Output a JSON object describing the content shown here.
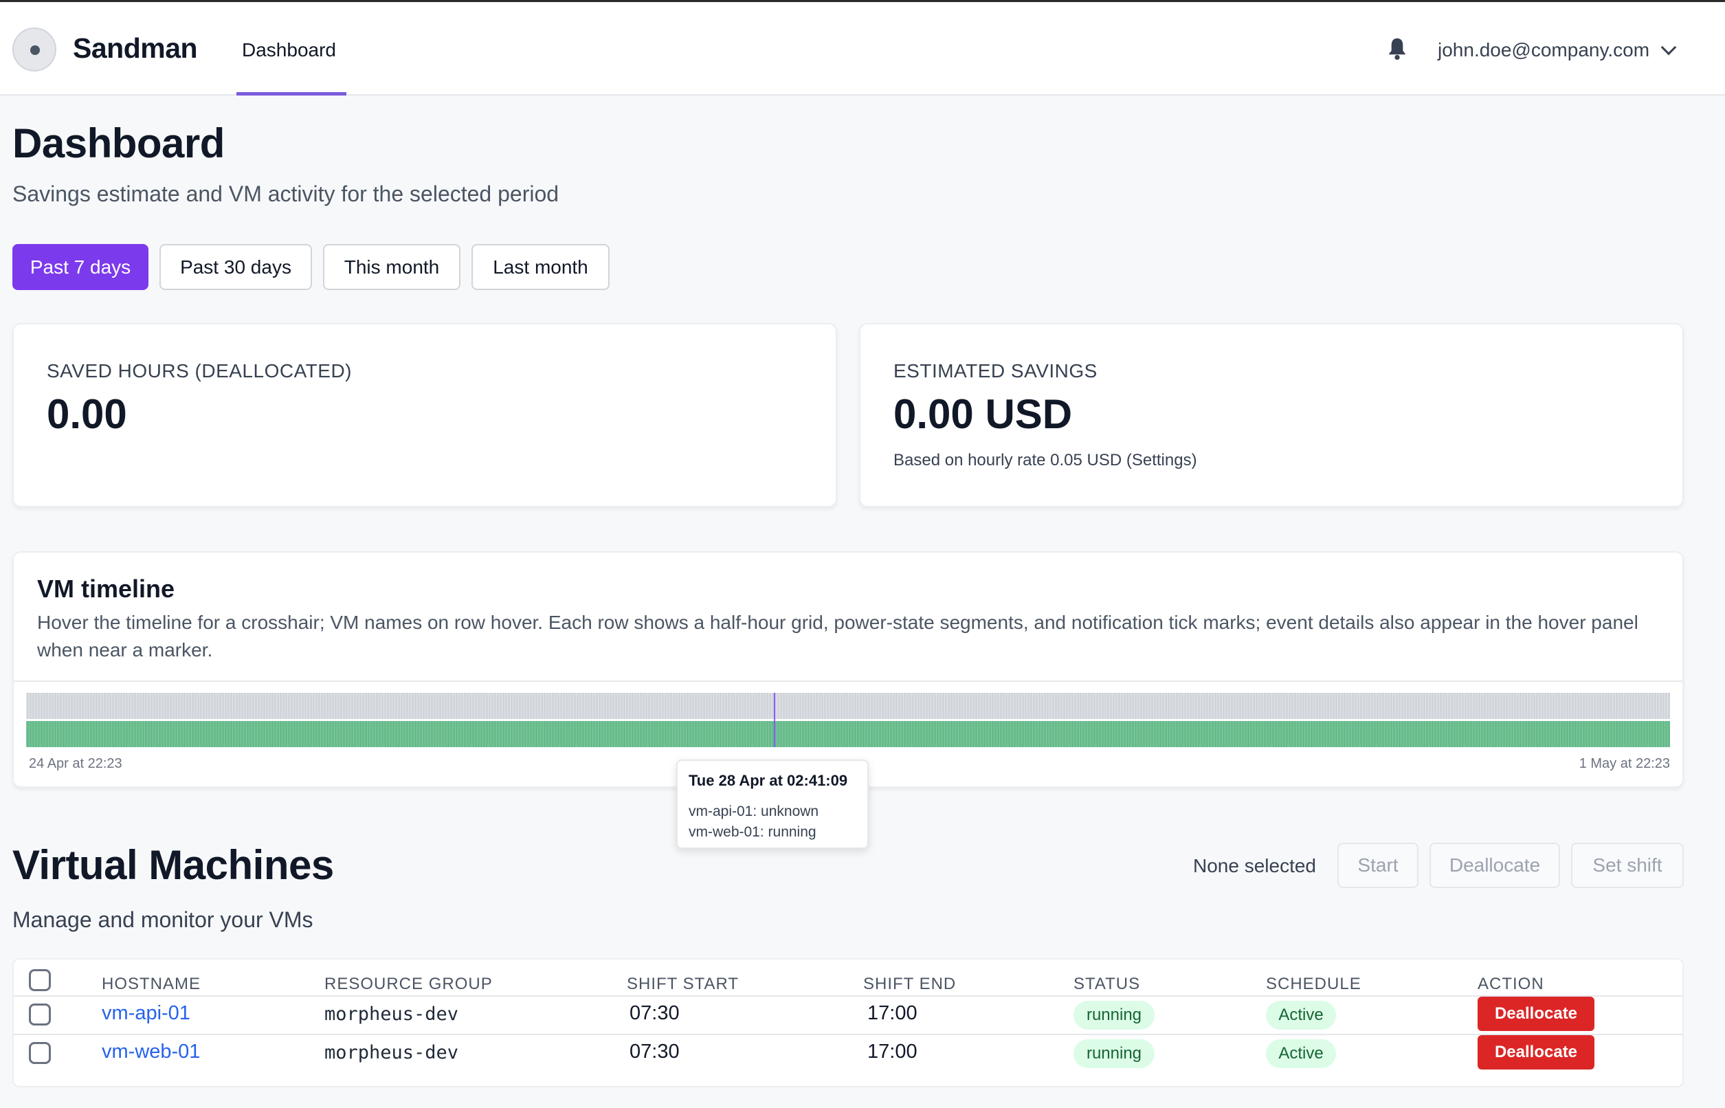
{
  "app": {
    "name": "Sandman"
  },
  "nav": {
    "tabs": [
      {
        "label": "Dashboard",
        "active": true
      }
    ]
  },
  "header": {
    "user_email": "john.doe@company.com",
    "icons": {
      "notifications": "bell-icon",
      "user_menu": "chevron-down-icon"
    }
  },
  "page": {
    "title": "Dashboard",
    "subtitle": "Savings estimate and VM activity for the selected period"
  },
  "periods": [
    {
      "label": "Past 7 days",
      "active": true
    },
    {
      "label": "Past 30 days",
      "active": false
    },
    {
      "label": "This month",
      "active": false
    },
    {
      "label": "Last month",
      "active": false
    }
  ],
  "stats": {
    "saved_hours": {
      "label": "SAVED HOURS (DEALLOCATED)",
      "value": "0.00"
    },
    "savings": {
      "label": "ESTIMATED SAVINGS",
      "value": "0.00 USD",
      "note": "Based on hourly rate 0.05 USD (Settings)"
    }
  },
  "timeline": {
    "title": "VM timeline",
    "description": "Hover the timeline for a crosshair; VM names on row hover. Each row shows a half-hour grid, power-state segments, and notification tick marks; event details also appear in the hover panel when near a marker.",
    "start_label": "24 Apr at 22:23",
    "end_label": "1 May at 22:23",
    "tooltip": {
      "title": "Tue 28 Apr at 02:41:09",
      "lines": [
        "vm-api-01: unknown",
        "vm-web-01: running"
      ]
    },
    "colors": {
      "unknown": "#d1d5db",
      "running": "#66bb8a",
      "crosshair": "#8b5cf6"
    }
  },
  "vms": {
    "title": "Virtual Machines",
    "subtitle": "Manage and monitor your VMs",
    "selection": "None selected",
    "bulk_actions": [
      "Start",
      "Deallocate",
      "Set shift"
    ],
    "columns": [
      "HOSTNAME",
      "RESOURCE GROUP",
      "SHIFT START",
      "SHIFT END",
      "STATUS",
      "SCHEDULE",
      "ACTION"
    ],
    "rows": [
      {
        "hostname": "vm-api-01",
        "resource_group": "morpheus-dev",
        "shift_start": "07:30",
        "shift_end": "17:00",
        "status": "running",
        "schedule": "Active",
        "action": "Deallocate"
      },
      {
        "hostname": "vm-web-01",
        "resource_group": "morpheus-dev",
        "shift_start": "07:30",
        "shift_end": "17:00",
        "status": "running",
        "schedule": "Active",
        "action": "Deallocate"
      }
    ]
  },
  "colors": {
    "accent": "#7c3aed",
    "danger": "#dc2626",
    "link": "#2563eb",
    "pill_bg": "#dcfce7",
    "pill_text": "#166534"
  }
}
